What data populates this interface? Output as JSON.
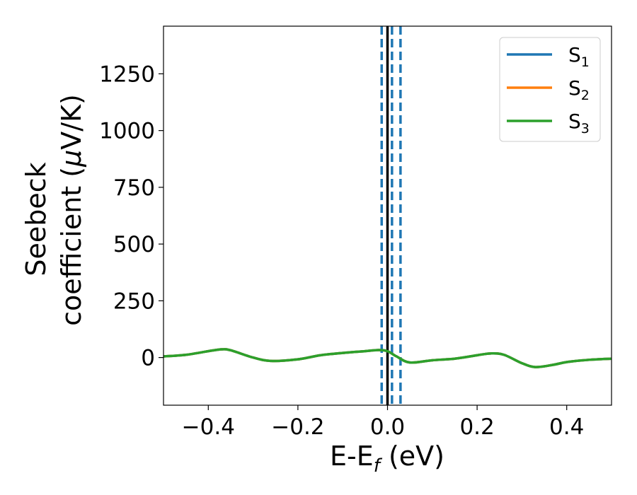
{
  "chart_data": {
    "type": "line",
    "xlabel": {
      "main": "E-E",
      "sub": "f",
      "unit": " (eV)"
    },
    "ylabel": {
      "line1": "Seebeck",
      "line2_prefix": "coefficient  (",
      "line2_mu": "μ",
      "line2_suffix": "V/K)"
    },
    "xlim": [
      -0.5,
      0.5
    ],
    "ylim": [
      -210,
      1460
    ],
    "x_ticks": [
      -0.4,
      -0.2,
      0.0,
      0.2,
      0.4
    ],
    "x_tick_labels": [
      "−0.4",
      "−0.2",
      "0.0",
      "0.2",
      "0.4"
    ],
    "y_ticks": [
      0,
      250,
      500,
      750,
      1000,
      1250
    ],
    "y_tick_labels": [
      "0",
      "250",
      "500",
      "750",
      "1000",
      "1250"
    ],
    "grid": false,
    "legend_position": "top-right",
    "series": [
      {
        "name": "S",
        "sub": "1",
        "color": "#1f77b4",
        "x": [
          -0.5,
          -0.45,
          -0.4,
          -0.37,
          -0.35,
          -0.3,
          -0.26,
          -0.2,
          -0.15,
          -0.1,
          -0.05,
          -0.02,
          0.0,
          0.02,
          0.05,
          0.1,
          0.15,
          0.2,
          0.23,
          0.26,
          0.3,
          0.33,
          0.37,
          0.4,
          0.45,
          0.5
        ],
        "y": [
          5,
          12,
          28,
          36,
          32,
          0,
          -15,
          -8,
          10,
          20,
          28,
          33,
          28,
          5,
          -22,
          -12,
          -5,
          10,
          18,
          12,
          -25,
          -42,
          -32,
          -20,
          -10,
          -5
        ]
      },
      {
        "name": "S",
        "sub": "2",
        "color": "#ff7f0e",
        "x": [
          -0.5,
          -0.45,
          -0.4,
          -0.37,
          -0.35,
          -0.3,
          -0.26,
          -0.2,
          -0.15,
          -0.1,
          -0.05,
          -0.02,
          0.0,
          0.02,
          0.05,
          0.1,
          0.15,
          0.2,
          0.23,
          0.26,
          0.3,
          0.33,
          0.37,
          0.4,
          0.45,
          0.5
        ],
        "y": [
          5,
          12,
          28,
          36,
          32,
          0,
          -15,
          -8,
          10,
          20,
          28,
          33,
          28,
          5,
          -22,
          -12,
          -5,
          10,
          18,
          12,
          -25,
          -42,
          -32,
          -20,
          -10,
          -5
        ]
      },
      {
        "name": "S",
        "sub": "3",
        "color": "#2ca02c",
        "x": [
          -0.5,
          -0.45,
          -0.4,
          -0.37,
          -0.35,
          -0.3,
          -0.26,
          -0.2,
          -0.15,
          -0.1,
          -0.05,
          -0.02,
          0.0,
          0.02,
          0.05,
          0.1,
          0.15,
          0.2,
          0.23,
          0.26,
          0.3,
          0.33,
          0.37,
          0.4,
          0.45,
          0.5
        ],
        "y": [
          5,
          12,
          28,
          36,
          32,
          0,
          -15,
          -8,
          10,
          20,
          28,
          33,
          28,
          5,
          -22,
          -12,
          -5,
          10,
          18,
          12,
          -25,
          -42,
          -32,
          -20,
          -10,
          -5
        ]
      }
    ],
    "vlines": [
      {
        "x": -0.013,
        "style": "dashed",
        "color": "#1f77b4"
      },
      {
        "x": 0.01,
        "style": "dashed",
        "color": "#1f77b4"
      },
      {
        "x": 0.029,
        "style": "dashed",
        "color": "#1f77b4"
      },
      {
        "x": 0.0,
        "style": "solid",
        "color": "#000000"
      }
    ]
  }
}
